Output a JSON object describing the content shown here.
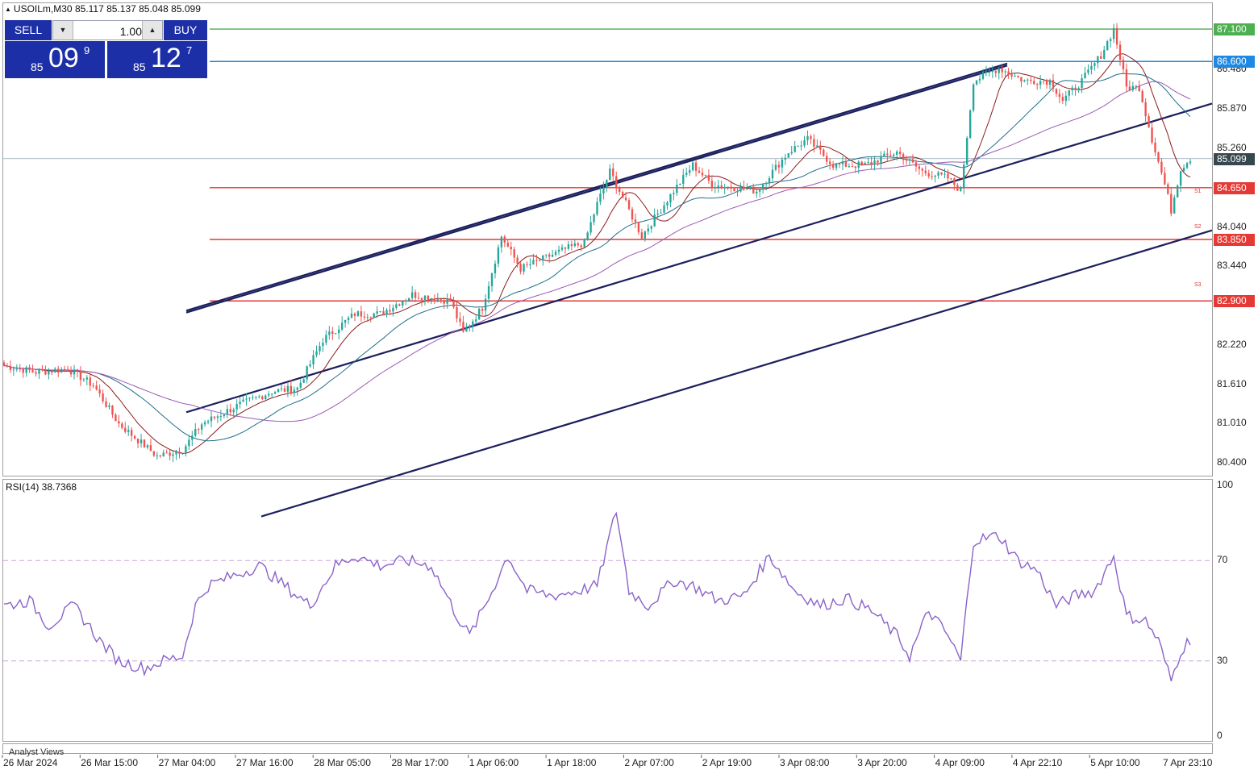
{
  "header": {
    "symbol_text": "USOILm,M30  85.117 85.137 85.048 85.099"
  },
  "trade_panel": {
    "sell_label": "SELL",
    "buy_label": "BUY",
    "lot_value": "1.00",
    "sell_price": {
      "small": "85",
      "big": "09",
      "sup": "9"
    },
    "buy_price": {
      "small": "85",
      "big": "12",
      "sup": "7"
    }
  },
  "colors": {
    "bull": "#26a69a",
    "bear": "#ef5350",
    "resistance": "#e53935",
    "target_green": "#4caf50",
    "target_blue": "#1e88e5",
    "channel": "#1b1f5e",
    "ma_short": "#8b1a1a",
    "ma_mid": "#1f6f8b",
    "ma_long": "#9b59b6",
    "rsi": "#8a63c9",
    "current": "#37474f"
  },
  "chart_data": [
    {
      "type": "candlestick",
      "title": "USOILm,M30",
      "ohlc_last": {
        "open": 85.117,
        "high": 85.137,
        "low": 85.048,
        "close": 85.099
      },
      "x_tick_labels": [
        "26 Mar 2024",
        "26 Mar 15:00",
        "27 Mar 04:00",
        "27 Mar 16:00",
        "28 Mar 05:00",
        "28 Mar 17:00",
        "1 Apr 06:00",
        "1 Apr 18:00",
        "2 Apr 07:00",
        "2 Apr 19:00",
        "3 Apr 08:00",
        "3 Apr 20:00",
        "4 Apr 09:00",
        "4 Apr 22:10",
        "5 Apr 10:00",
        "7 Apr 23:10"
      ],
      "y_ticks": [
        80.4,
        81.01,
        81.61,
        82.22,
        83.44,
        84.04,
        85.26,
        85.87,
        86.48
      ],
      "ylim": [
        80.2,
        87.5
      ],
      "price_path_keypoints": [
        [
          0,
          81.9
        ],
        [
          10,
          81.8
        ],
        [
          20,
          81.85
        ],
        [
          28,
          81.6
        ],
        [
          36,
          81.0
        ],
        [
          48,
          80.5
        ],
        [
          56,
          80.6
        ],
        [
          62,
          81.0
        ],
        [
          74,
          81.3
        ],
        [
          84,
          81.5
        ],
        [
          92,
          81.55
        ],
        [
          100,
          82.3
        ],
        [
          110,
          82.7
        ],
        [
          118,
          82.7
        ],
        [
          128,
          83.0
        ],
        [
          140,
          82.9
        ],
        [
          144,
          82.4
        ],
        [
          150,
          82.8
        ],
        [
          156,
          83.9
        ],
        [
          162,
          83.4
        ],
        [
          176,
          83.7
        ],
        [
          182,
          83.8
        ],
        [
          186,
          84.4
        ],
        [
          190,
          84.9
        ],
        [
          196,
          84.3
        ],
        [
          200,
          83.9
        ],
        [
          210,
          84.6
        ],
        [
          216,
          85.0
        ],
        [
          222,
          84.7
        ],
        [
          236,
          84.6
        ],
        [
          246,
          85.2
        ],
        [
          252,
          85.4
        ],
        [
          260,
          85.0
        ],
        [
          270,
          85.0
        ],
        [
          280,
          85.2
        ],
        [
          288,
          84.9
        ],
        [
          296,
          84.8
        ],
        [
          300,
          84.6
        ],
        [
          304,
          86.3
        ],
        [
          312,
          86.5
        ],
        [
          320,
          86.3
        ],
        [
          328,
          86.3
        ],
        [
          332,
          86.0
        ],
        [
          338,
          86.3
        ],
        [
          344,
          86.7
        ],
        [
          348,
          87.1
        ],
        [
          352,
          86.2
        ],
        [
          356,
          86.2
        ],
        [
          360,
          85.4
        ],
        [
          364,
          84.7
        ],
        [
          366,
          84.3
        ],
        [
          369,
          84.95
        ],
        [
          372,
          85.1
        ]
      ],
      "horizontal_levels": [
        {
          "value": 87.1,
          "label": "87.100",
          "color": "#4caf50"
        },
        {
          "value": 86.6,
          "label": "86.600",
          "color": "#1e88e5"
        },
        {
          "value": 84.65,
          "label": "84.650",
          "color": "#e53935"
        },
        {
          "value": 83.85,
          "label": "83.850",
          "color": "#e53935"
        },
        {
          "value": 82.9,
          "label": "82.900",
          "color": "#e53935"
        }
      ],
      "current_price": {
        "value": 85.099,
        "label": "85.099"
      },
      "annotations": [
        "S1",
        "S2",
        "S3"
      ],
      "indicators": [
        "MA short",
        "MA mid",
        "MA long"
      ]
    },
    {
      "type": "line",
      "title": "RSI(14) 38.7368",
      "ylim": [
        0,
        100
      ],
      "y_ticks": [
        0,
        30,
        70,
        100
      ],
      "reference_lines": [
        30,
        70
      ],
      "rsi_keypoints": [
        [
          0,
          52
        ],
        [
          8,
          54
        ],
        [
          14,
          44
        ],
        [
          22,
          52
        ],
        [
          30,
          38
        ],
        [
          36,
          30
        ],
        [
          44,
          27
        ],
        [
          50,
          30
        ],
        [
          56,
          32
        ],
        [
          60,
          52
        ],
        [
          64,
          60
        ],
        [
          72,
          64
        ],
        [
          80,
          68
        ],
        [
          88,
          60
        ],
        [
          96,
          52
        ],
        [
          104,
          68
        ],
        [
          110,
          72
        ],
        [
          118,
          68
        ],
        [
          126,
          70
        ],
        [
          134,
          68
        ],
        [
          142,
          48
        ],
        [
          146,
          40
        ],
        [
          152,
          55
        ],
        [
          158,
          72
        ],
        [
          164,
          58
        ],
        [
          172,
          56
        ],
        [
          180,
          58
        ],
        [
          186,
          60
        ],
        [
          192,
          90
        ],
        [
          196,
          58
        ],
        [
          202,
          52
        ],
        [
          210,
          62
        ],
        [
          216,
          60
        ],
        [
          224,
          54
        ],
        [
          232,
          56
        ],
        [
          240,
          72
        ],
        [
          248,
          58
        ],
        [
          256,
          52
        ],
        [
          264,
          55
        ],
        [
          272,
          50
        ],
        [
          280,
          40
        ],
        [
          284,
          32
        ],
        [
          290,
          50
        ],
        [
          296,
          40
        ],
        [
          300,
          30
        ],
        [
          304,
          78
        ],
        [
          312,
          80
        ],
        [
          318,
          70
        ],
        [
          324,
          66
        ],
        [
          330,
          52
        ],
        [
          336,
          56
        ],
        [
          342,
          58
        ],
        [
          348,
          72
        ],
        [
          352,
          48
        ],
        [
          358,
          46
        ],
        [
          362,
          38
        ],
        [
          366,
          22
        ],
        [
          369,
          34
        ],
        [
          372,
          38.7
        ]
      ]
    }
  ],
  "footer": {
    "analyst_label": "Analyst Views"
  }
}
